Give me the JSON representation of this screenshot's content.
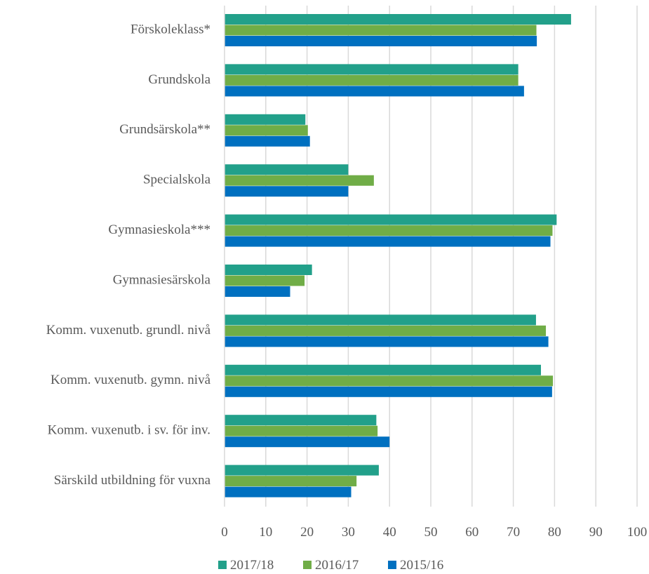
{
  "chart_data": {
    "type": "bar",
    "orientation": "horizontal",
    "categories": [
      "Förskoleklass*",
      "Grundskola",
      "Grundsärskola**",
      "Specialskola",
      "Gymnasieskola***",
      "Gymnasiesärskola",
      "Komm. vuxenutb. grundl. nivå",
      "Komm. vuxenutb. gymn. nivå",
      "Komm. vuxenutb. i sv. för inv.",
      "Särskild utbildning för vuxna"
    ],
    "series": [
      {
        "name": "2017/18",
        "color": "#22A08A",
        "values": [
          84,
          71.2,
          19.6,
          30,
          80.5,
          21.2,
          75.5,
          76.7,
          36.8,
          37.4
        ]
      },
      {
        "name": "2016/17",
        "color": "#70AD47",
        "values": [
          75.6,
          71.2,
          20.2,
          36.2,
          79.5,
          19.4,
          77.9,
          79.6,
          37.1,
          32
        ]
      },
      {
        "name": "2015/16",
        "color": "#0070C0",
        "values": [
          75.7,
          72.6,
          20.7,
          30,
          79,
          15.9,
          78.5,
          79.4,
          40,
          30.7
        ]
      }
    ],
    "xlim": [
      0,
      100
    ],
    "xticks": [
      0,
      10,
      20,
      30,
      40,
      50,
      60,
      70,
      80,
      90,
      100
    ],
    "grid": "vertical",
    "legend": "bottom-center",
    "title": "",
    "xlabel": "",
    "ylabel": ""
  }
}
